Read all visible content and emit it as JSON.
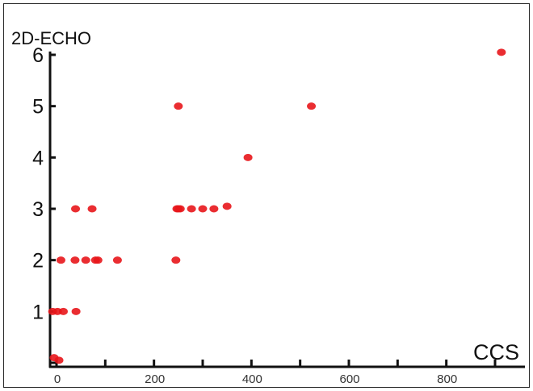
{
  "chart_data": {
    "type": "scatter",
    "title": "",
    "xlabel": "CCS",
    "ylabel": "2D-ECHO",
    "xlim": [
      -15,
      980
    ],
    "ylim": [
      -0.05,
      6.05
    ],
    "x_ticks": [
      0,
      100,
      200,
      300,
      400,
      500,
      600,
      700,
      800,
      900
    ],
    "x_tick_labels": [
      "0",
      "",
      "200",
      "",
      "400",
      "",
      "600",
      "",
      "800",
      ""
    ],
    "y_ticks": [
      0,
      1,
      2,
      3,
      4,
      5,
      6
    ],
    "y_tick_labels": [
      "",
      "1",
      "2",
      "3",
      "4",
      "5",
      "6"
    ],
    "grid": false,
    "legend": "none",
    "marker_color": "#e8161b",
    "series": [
      {
        "points": [
          {
            "x": -5,
            "y": 0.1
          },
          {
            "x": 5,
            "y": 0.05
          },
          {
            "x": -8,
            "y": 1
          },
          {
            "x": 2,
            "y": 1
          },
          {
            "x": 14,
            "y": 1
          },
          {
            "x": 40,
            "y": 1
          },
          {
            "x": 9,
            "y": 2
          },
          {
            "x": 38,
            "y": 2
          },
          {
            "x": 60,
            "y": 2
          },
          {
            "x": 80,
            "y": 2
          },
          {
            "x": 85,
            "y": 2
          },
          {
            "x": 125,
            "y": 2
          },
          {
            "x": 39,
            "y": 3
          },
          {
            "x": 73,
            "y": 3
          },
          {
            "x": 245,
            "y": 2
          },
          {
            "x": 247,
            "y": 3
          },
          {
            "x": 250,
            "y": 3
          },
          {
            "x": 254,
            "y": 3
          },
          {
            "x": 277,
            "y": 3
          },
          {
            "x": 300,
            "y": 3
          },
          {
            "x": 323,
            "y": 3
          },
          {
            "x": 350,
            "y": 3.05
          },
          {
            "x": 250,
            "y": 5
          },
          {
            "x": 393,
            "y": 4
          },
          {
            "x": 523,
            "y": 5
          },
          {
            "x": 913,
            "y": 6.05
          }
        ]
      }
    ]
  }
}
